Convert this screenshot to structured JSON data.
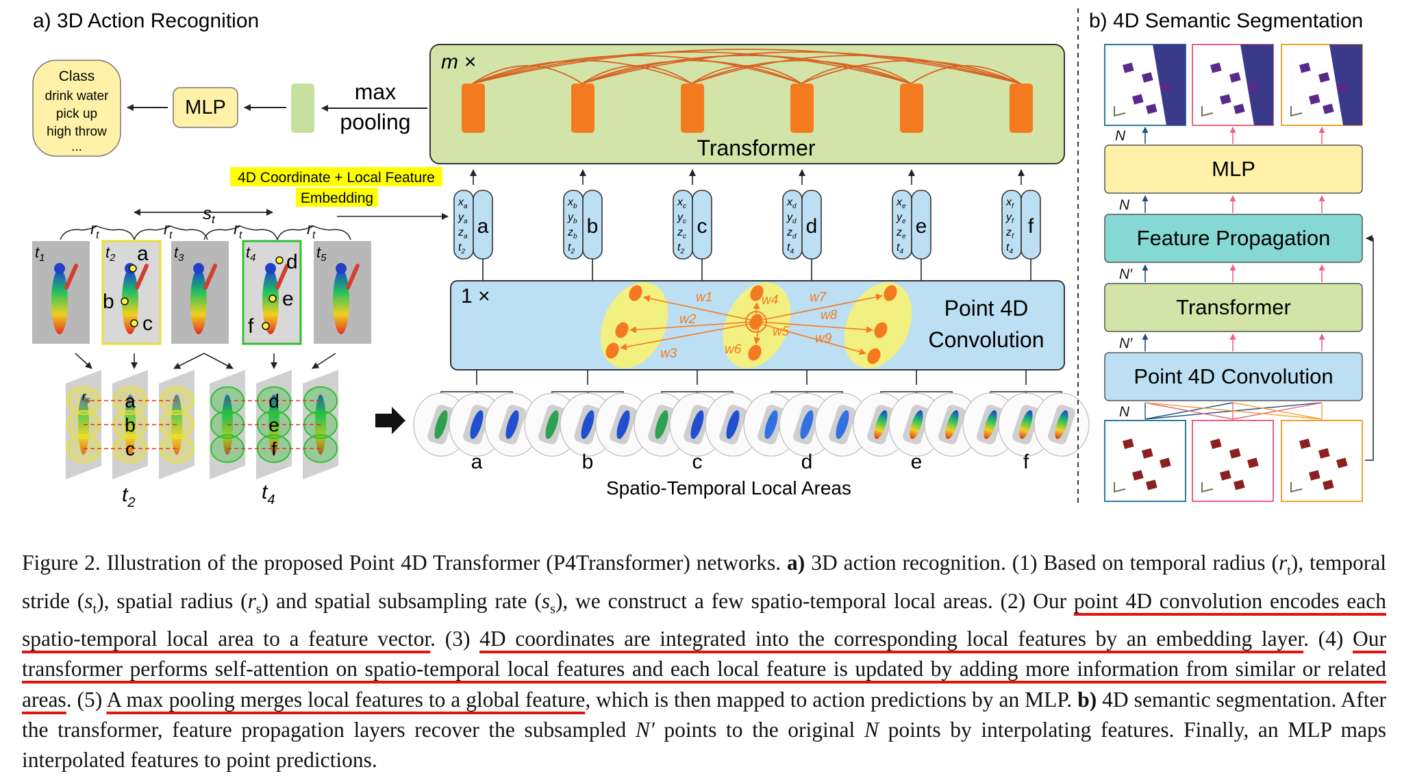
{
  "panel_a": {
    "title": "a) 3D Action Recognition",
    "class_box": [
      "Class",
      "drink water",
      "pick up",
      "high throw",
      "..."
    ],
    "mlp_label": "MLP",
    "max_pooling": [
      "max",
      "pooling"
    ],
    "transformer": {
      "repeat": "m ×",
      "label": "Transformer"
    },
    "embedding_note": [
      "4D Coordinate + Local Feature",
      "Embedding"
    ],
    "frames": [
      "t1",
      "t2",
      "t3",
      "t4",
      "t5"
    ],
    "stride_label": "st",
    "radius_label": "rt",
    "spatial_radius_label": "rs",
    "points": [
      "a",
      "b",
      "c",
      "d",
      "e",
      "f"
    ],
    "point_coords": [
      {
        "x": "xa",
        "y": "ya",
        "z": "za",
        "t": "t2"
      },
      {
        "x": "xb",
        "y": "yb",
        "z": "zb",
        "t": "t2"
      },
      {
        "x": "xc",
        "y": "yc",
        "z": "zc",
        "t": "t2"
      },
      {
        "x": "xd",
        "y": "yd",
        "z": "zd",
        "t": "t4"
      },
      {
        "x": "xe",
        "y": "ye",
        "z": "ze",
        "t": "t4"
      },
      {
        "x": "xf",
        "y": "yf",
        "z": "zf",
        "t": "t4"
      }
    ],
    "conv_repeat": "1 ×",
    "conv_label": [
      "Point 4D",
      "Convolution"
    ],
    "weights": [
      "w1",
      "w2",
      "w3",
      "w4",
      "w5",
      "w6",
      "w7",
      "w8",
      "w9"
    ],
    "area_frames": [
      "t2",
      "t4"
    ],
    "local_areas_label": "Spatio-Temporal Local Areas"
  },
  "panel_b": {
    "title": "b) 4D Semantic Segmentation",
    "mlp_label": "MLP",
    "feature_propagation": "Feature Propagation",
    "transformer": "Transformer",
    "conv": "Point 4D Convolution",
    "n_label": "N",
    "n_prime_label": "N′"
  },
  "colors": {
    "transformer_fill": "#d3e4a9",
    "conv_fill": "#bddff3",
    "mlp_fill": "#fff2a8",
    "fp_fill": "#86d8d4",
    "token_orange": "#f47a20",
    "highlight": "#ffff00",
    "underline_red": "#e3120b"
  },
  "caption": {
    "s1": "Figure 2. Illustration of the proposed Point 4D Transformer (P4Transformer) networks. ",
    "s1b": "a)",
    "s2": " 3D action recognition. (1) Based on temporal radius (",
    "rt": "r",
    "rt_sub": "t",
    "s3": "), temporal stride (",
    "st": "s",
    "st_sub": "t",
    "s4": "), spatial radius (",
    "rs": "r",
    "rs_sub": "s",
    "s5": ") and spatial subsampling rate (",
    "ss": "s",
    "ss_sub": "s",
    "s6": "), we construct a few spatio-temporal local areas. (2) Our ",
    "u1": "point 4D convolution encodes each spatio-temporal local area to a feature vector",
    "s7": ". (3) ",
    "u2": "4D coordinates are integrated into the corresponding local features by an embedding layer",
    "s8": ". (4) ",
    "u3": "Our transformer performs self-attention on spatio-temporal local features and each local feature is updated by adding more information from similar or related areas",
    "s9": ". (5) ",
    "u4": "A max pooling merges local features to a global feature",
    "s10": ", which is then mapped to action predictions by an MLP. ",
    "s10b": "b)",
    "s11": " 4D semantic segmentation. After the transformer, feature propagation layers recover the subsampled ",
    "np": "N′",
    "s12": " points to the original ",
    "n": "N",
    "s13": " points by interpolating features. Finally, an MLP maps interpolated features to point predictions."
  }
}
